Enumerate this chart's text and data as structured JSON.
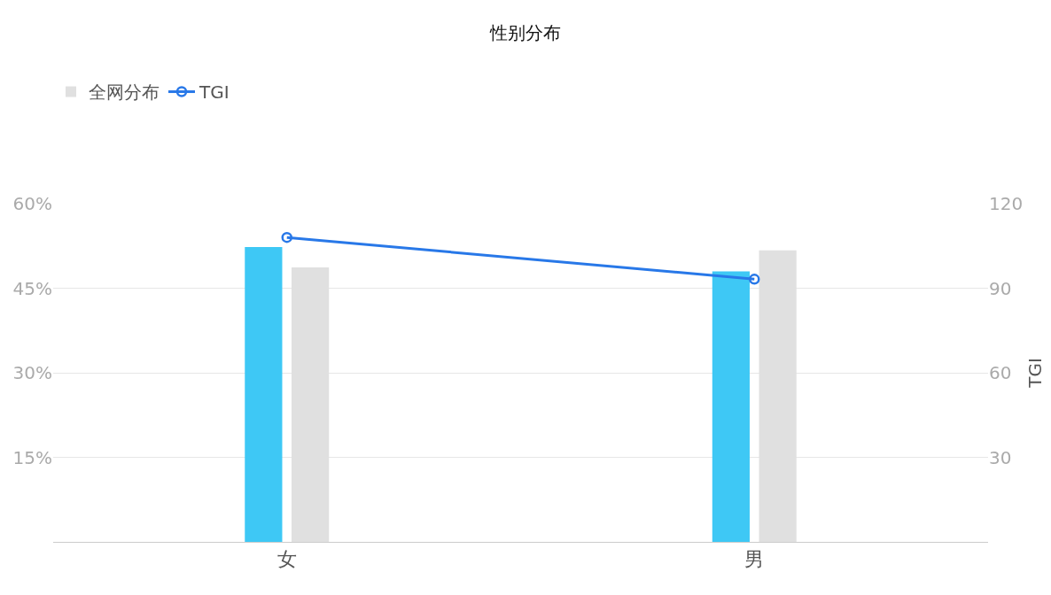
{
  "chart_data": {
    "type": "bar",
    "title": "性别分布",
    "categories": [
      "女",
      "男"
    ],
    "series": [
      {
        "color": "#3ec8f5",
        "values": [
          52.3,
          48.0
        ]
      },
      {
        "name": "全网分布",
        "color": "#e0e0e0",
        "values": [
          48.7,
          51.7
        ]
      },
      {
        "name": "TGI",
        "type": "line",
        "axis": "y2",
        "color": "#2878e8",
        "marker": "circle",
        "values": [
          108,
          93.2
        ]
      }
    ],
    "ylim": [
      0,
      60
    ],
    "yticks": [
      {
        "value": 15,
        "label": "15%"
      },
      {
        "value": 30,
        "label": "30%"
      },
      {
        "value": 45,
        "label": "45%"
      },
      {
        "value": 60,
        "label": "60%"
      }
    ],
    "y2lim": [
      0,
      120
    ],
    "y2ticks": [
      30,
      60,
      90,
      120
    ],
    "y2label": "TGI",
    "grid": "y",
    "legend": "top left"
  }
}
